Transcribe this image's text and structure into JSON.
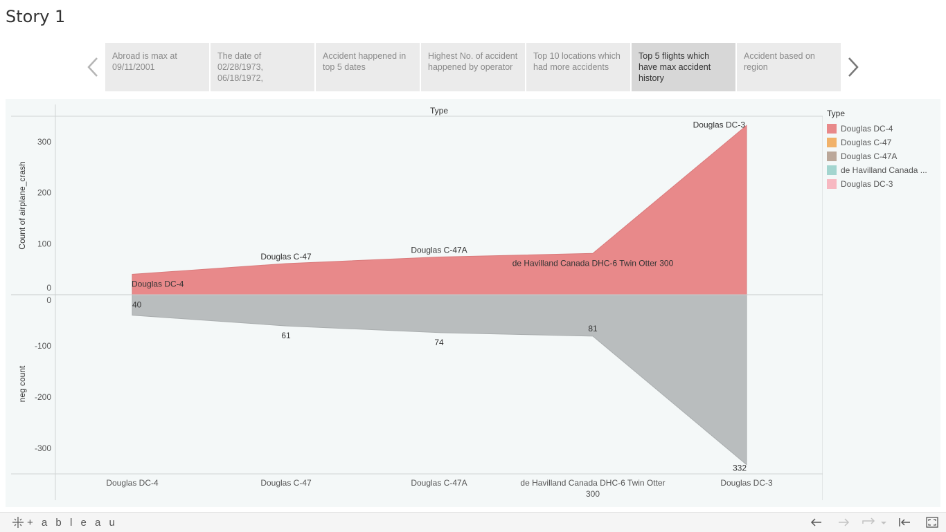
{
  "story": {
    "title": "Story 1",
    "points": [
      {
        "label": "Abroad is max at 09/11/2001",
        "active": false
      },
      {
        "label": "The date of 02/28/1973, 06/18/1972,",
        "active": false
      },
      {
        "label": "Accident happened in top 5 dates",
        "active": false
      },
      {
        "label": "Highest No. of accident happened by operator",
        "active": false
      },
      {
        "label": "Top 10 locations which had more accidents",
        "active": false
      },
      {
        "label": "Top 5 flights which have max accident history",
        "active": true
      },
      {
        "label": "Accident based on region",
        "active": false
      }
    ]
  },
  "legend": {
    "title": "Type",
    "items": [
      {
        "label": "Douglas DC-4",
        "color": "#e8898a"
      },
      {
        "label": "Douglas C-47",
        "color": "#f1b26a"
      },
      {
        "label": "Douglas C-47A",
        "color": "#bba89a"
      },
      {
        "label": "de Havilland Canada ...",
        "color": "#a3d5cf"
      },
      {
        "label": "Douglas DC-3",
        "color": "#f7b8c1"
      }
    ]
  },
  "chart_data": {
    "type": "area",
    "title": "Type",
    "categories": [
      "Douglas DC-4",
      "Douglas C-47",
      "Douglas C-47A",
      "de Havilland Canada DHC-6 Twin Otter 300",
      "Douglas DC-3"
    ],
    "category_tick_labels": [
      [
        "Douglas DC-4"
      ],
      [
        "Douglas C-47"
      ],
      [
        "Douglas C-47A"
      ],
      [
        "de Havilland Canada DHC-6 Twin Otter",
        "300"
      ],
      [
        "Douglas DC-3"
      ]
    ],
    "top_panel": {
      "ylabel": "Count of airplane_crash",
      "ylim": [
        0,
        350
      ],
      "yticks": [
        0,
        100,
        200,
        300
      ],
      "color": "#e8898a",
      "values": [
        40,
        61,
        74,
        81,
        332
      ],
      "point_labels": [
        "Douglas DC-4",
        "Douglas C-47",
        "Douglas C-47A",
        "de Havilland Canada DHC-6 Twin Otter 300",
        "Douglas DC-3"
      ]
    },
    "bottom_panel": {
      "ylabel": "neg count",
      "ylim": [
        -350,
        0
      ],
      "yticks": [
        0,
        -100,
        -200,
        -300
      ],
      "color": "#b9bdbe",
      "values": [
        -40,
        -61,
        -74,
        -81,
        -332
      ],
      "point_labels": [
        "40",
        "61",
        "74",
        "81",
        "332"
      ]
    },
    "grid": false
  },
  "toolbar": {
    "brand": "+ a b l e a u"
  }
}
